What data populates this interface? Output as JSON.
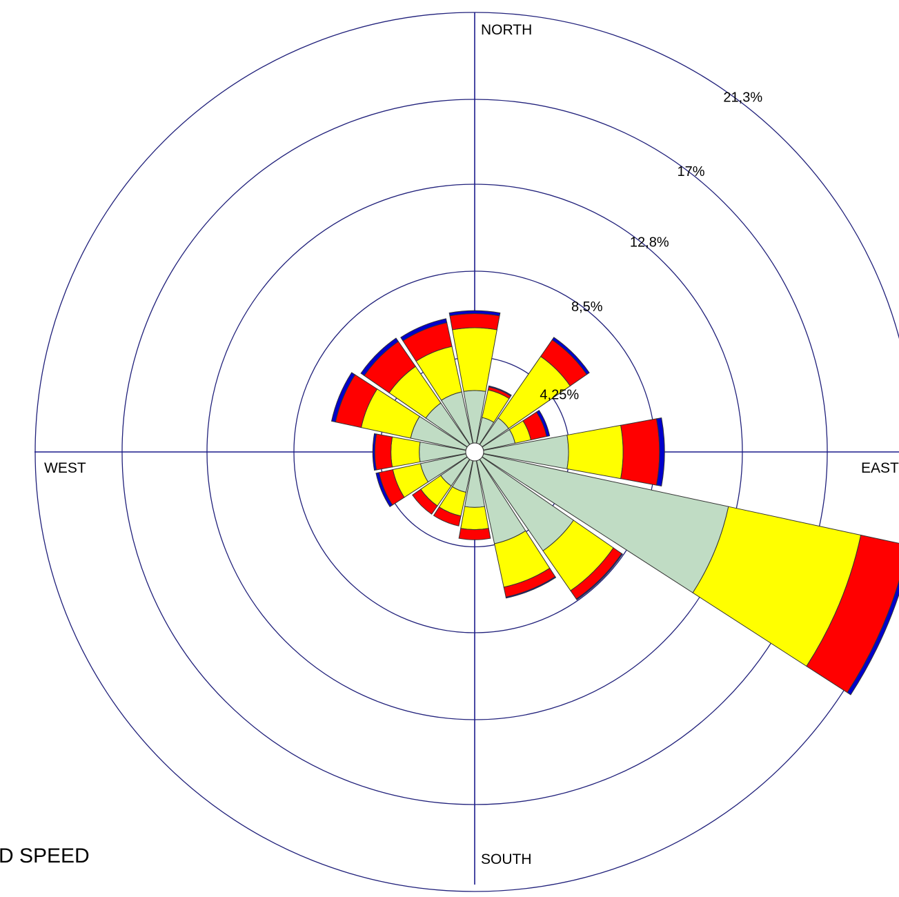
{
  "chart_data": {
    "type": "wind-rose",
    "directions": [
      "N",
      "NNE",
      "NE",
      "ENE",
      "E",
      "ESE",
      "SE",
      "SSE",
      "S",
      "SSW",
      "SW",
      "WSW",
      "W",
      "WNW",
      "NW",
      "NNW"
    ],
    "direction_labels": {
      "north": "NORTH",
      "east": "EAST",
      "south": "SOUTH",
      "west": "WEST"
    },
    "ring_values": [
      4.25,
      8.5,
      12.8,
      17,
      21.3
    ],
    "ring_labels": [
      "4,25%",
      "8,5%",
      "12,8%",
      "17%",
      "21,3%"
    ],
    "radial_max": 21.3,
    "series": [
      {
        "color": "#c0dcc4",
        "values": [
          2.6,
          1.3,
          1.6,
          1.6,
          4.2,
          12.4,
          5.5,
          4.2,
          2.3,
          1.6,
          1.6,
          2.3,
          2.3,
          2.8,
          2.5,
          2.6
        ]
      },
      {
        "color": "#ffff00",
        "values": [
          3.1,
          1.4,
          3.7,
          0.8,
          2.7,
          6.7,
          2.4,
          2.2,
          1.1,
          1.2,
          1.2,
          1.4,
          1.4,
          2.5,
          2.2,
          2.3
        ]
      },
      {
        "color": "#ff0000",
        "values": [
          0.7,
          0.15,
          1.0,
          0.8,
          1.8,
          2.4,
          0.5,
          0.5,
          0.5,
          0.5,
          0.5,
          0.7,
          0.8,
          1.3,
          1.5,
          1.2
        ]
      },
      {
        "color": "#0000cc",
        "values": [
          0.15,
          0.05,
          0.15,
          0.15,
          0.25,
          0.2,
          0.05,
          0.05,
          0,
          0,
          0,
          0.15,
          0.1,
          0.2,
          0.2,
          0.2
        ]
      }
    ]
  },
  "legend": {
    "title": "D SPEED"
  }
}
